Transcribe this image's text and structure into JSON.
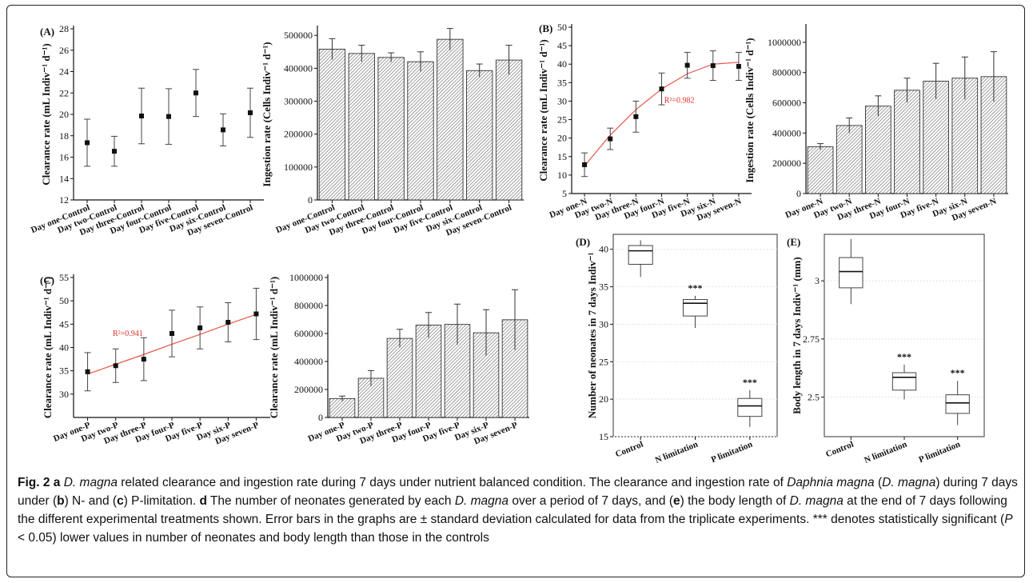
{
  "caption": {
    "fig_label": "Fig. 2",
    "lead_letter": "a",
    "italic_species_short": "D. magna",
    "text_1": " related clearance and ingestion rate during 7 days under nutrient balanced condition. The clearance and ingestion rate of ",
    "italic_species_full": "Daphnia magna",
    "text_2": " (",
    "text_3": ") during 7 days under (",
    "letter_b": "b",
    "text_4": ") N- and (",
    "letter_c": "c",
    "text_5": ") P-limitation. ",
    "letter_d": "d",
    "text_6": " The number of neonates generated by each ",
    "text_7": " over a period of 7 days, and (",
    "letter_e": "e",
    "text_8": ") the body length of ",
    "text_9": " at the end of 7 days following the different experimental treatments shown. Error bars in the graphs are ± standard deviation calculated for data from the triplicate experiments. *** denotes statistically significant (",
    "italic_p": "P",
    "text_10": " < 0.05) lower values in number of neonates and body length than those in the controls"
  },
  "chart_data": [
    {
      "id": "A1",
      "panel_label": "(A)",
      "type": "scatter",
      "categories": [
        "Day one-Control",
        "Day two-Control",
        "Day three-Control",
        "Day four-Control",
        "Day five-Control",
        "Day six-Control",
        "Day seven-Control"
      ],
      "values": [
        17.35,
        16.55,
        19.85,
        19.8,
        22.0,
        18.55,
        20.15
      ],
      "errors": [
        2.2,
        1.4,
        2.6,
        2.6,
        2.2,
        1.5,
        2.3
      ],
      "ylabel": "Clearance rate (mL Indiv⁻¹ d⁻¹)",
      "ylim": [
        12,
        28
      ],
      "yticks": [
        12,
        14,
        16,
        18,
        20,
        22,
        24,
        26,
        28
      ],
      "ytick_labels": [
        "12",
        "14",
        "16",
        "18",
        "20",
        "22",
        "24",
        "26",
        "28"
      ]
    },
    {
      "id": "A2",
      "type": "bar",
      "categories": [
        "Day one-Control",
        "Day two-Control",
        "Day three-Control",
        "Day four-Control",
        "Day five-Control",
        "Day six-Control",
        "Day seven-Control"
      ],
      "values": [
        458000,
        445000,
        433000,
        420000,
        488000,
        393000,
        425000
      ],
      "errors": [
        32000,
        25000,
        14000,
        30000,
        33000,
        20000,
        45000
      ],
      "ylabel": "Ingestion rate (Cells Indiv⁻¹ d⁻¹)",
      "ylim": [
        0,
        520000
      ],
      "yticks": [
        0,
        100000,
        200000,
        300000,
        400000,
        500000
      ],
      "ytick_labels": [
        "0",
        "100000",
        "200000",
        "300000",
        "400000",
        "500000"
      ]
    },
    {
      "id": "B1",
      "panel_label": "(B)",
      "type": "scatter",
      "categories": [
        "Day one-N",
        "Day two-N",
        "Day three-N",
        "Day four-N",
        "Day five-N",
        "Day six-N",
        "Day seven-N"
      ],
      "values": [
        12.8,
        19.8,
        25.8,
        33.3,
        39.7,
        39.6,
        39.4
      ],
      "errors": [
        3.2,
        2.9,
        4.2,
        4.3,
        3.5,
        4.0,
        3.8
      ],
      "fit": [
        12.5,
        20.8,
        27.7,
        33.3,
        37.4,
        40.0,
        40.5
      ],
      "r2_label": "R²=0.982",
      "ylabel": "Clearance rate (mL Indiv⁻¹ d⁻¹)",
      "ylim": [
        5,
        50
      ],
      "yticks": [
        5,
        10,
        15,
        20,
        25,
        30,
        35,
        40,
        45,
        50
      ],
      "ytick_labels": [
        "5",
        "10",
        "15",
        "20",
        "25",
        "30",
        "35",
        "40",
        "45",
        "50"
      ]
    },
    {
      "id": "B2",
      "type": "bar",
      "categories": [
        "Day one-N",
        "Day two-N",
        "Day three-N",
        "Day four-N",
        "Day five-N",
        "Day six-N",
        "Day seven-N"
      ],
      "values": [
        310000,
        450000,
        578000,
        683000,
        743000,
        763000,
        773000
      ],
      "errors": [
        20000,
        50000,
        68000,
        80000,
        118000,
        140000,
        165000
      ],
      "ylabel": "Ingestion rate (Cells Indiv⁻¹ d⁻¹)",
      "ylim": [
        0,
        1100000
      ],
      "yticks": [
        0,
        200000,
        400000,
        600000,
        800000,
        1000000
      ],
      "ytick_labels": [
        "0",
        "200000",
        "400000",
        "600000",
        "800000",
        "1000000"
      ]
    },
    {
      "id": "C1",
      "panel_label": "(C)",
      "type": "scatter",
      "categories": [
        "Day one-P",
        "Day two-P",
        "Day three-P",
        "Day four-P",
        "Day five-P",
        "Day six-P",
        "Day seven-P"
      ],
      "values": [
        34.8,
        36.1,
        37.5,
        43.0,
        44.2,
        45.4,
        47.2
      ],
      "errors": [
        4.1,
        3.6,
        4.6,
        5.0,
        4.5,
        4.2,
        5.5
      ],
      "fit": [
        34.3,
        36.4,
        38.5,
        40.7,
        42.8,
        45.0,
        47.1
      ],
      "r2_label": "R²=0.941",
      "ylabel": "Clearance rate (mL Indiv⁻¹ d⁻¹)",
      "ylim": [
        25,
        55
      ],
      "yticks": [
        30,
        35,
        40,
        45,
        50,
        55
      ],
      "ytick_labels": [
        "30",
        "35",
        "40",
        "45",
        "50",
        "55"
      ]
    },
    {
      "id": "C2",
      "type": "bar",
      "categories": [
        "Day one-P",
        "Day two-P",
        "Day three-P",
        "Day four-P",
        "Day five-P",
        "Day six-P",
        "Day seven-P"
      ],
      "values": [
        135000,
        280000,
        565000,
        660000,
        665000,
        605000,
        698000
      ],
      "errors": [
        18000,
        55000,
        65000,
        90000,
        145000,
        165000,
        215000
      ],
      "ylabel": "Clearance rate (mL Indiv⁻¹ d⁻¹)",
      "ylim": [
        0,
        1000000
      ],
      "yticks": [
        0,
        200000,
        400000,
        600000,
        800000,
        1000000
      ],
      "ytick_labels": [
        "0",
        "200000",
        "400000",
        "600000",
        "800000",
        "1000000"
      ]
    },
    {
      "id": "D",
      "panel_label": "(D)",
      "type": "boxplot",
      "categories": [
        "Control",
        "N limitation",
        "P limitation"
      ],
      "boxes": [
        {
          "min": 36.3,
          "q1": 38.0,
          "median": 39.8,
          "q3": 40.5,
          "max": 41.2
        },
        {
          "min": 29.5,
          "q1": 31.1,
          "median": 32.8,
          "q3": 33.3,
          "max": 33.8
        },
        {
          "min": 16.3,
          "q1": 17.7,
          "median": 19.1,
          "q3": 20.1,
          "max": 21.2
        }
      ],
      "significance": [
        "",
        "***",
        "***"
      ],
      "ylabel": "Number of neonates in 7 days Indiv⁻¹",
      "ylim": [
        15,
        42
      ],
      "yticks": [
        15,
        20,
        25,
        30,
        35,
        40
      ],
      "ytick_labels": [
        "15",
        "20",
        "25",
        "30",
        "35",
        "40"
      ]
    },
    {
      "id": "E",
      "panel_label": "(E)",
      "type": "boxplot",
      "categories": [
        "Control",
        "N limitation",
        "P limitation"
      ],
      "boxes": [
        {
          "min": 2.9,
          "q1": 2.97,
          "median": 3.04,
          "q3": 3.1,
          "max": 3.18
        },
        {
          "min": 2.49,
          "q1": 2.53,
          "median": 2.585,
          "q3": 2.605,
          "max": 2.64
        },
        {
          "min": 2.38,
          "q1": 2.43,
          "median": 2.475,
          "q3": 2.51,
          "max": 2.57
        }
      ],
      "significance": [
        "",
        "***",
        "***"
      ],
      "ylabel": "Body length in 7 days Indiv⁻¹ (mm)",
      "ylim": [
        2.33,
        3.2
      ],
      "yticks": [
        2.5,
        2.75,
        3.0
      ],
      "ytick_labels": [
        "2.5",
        "2.75",
        "3"
      ]
    }
  ]
}
